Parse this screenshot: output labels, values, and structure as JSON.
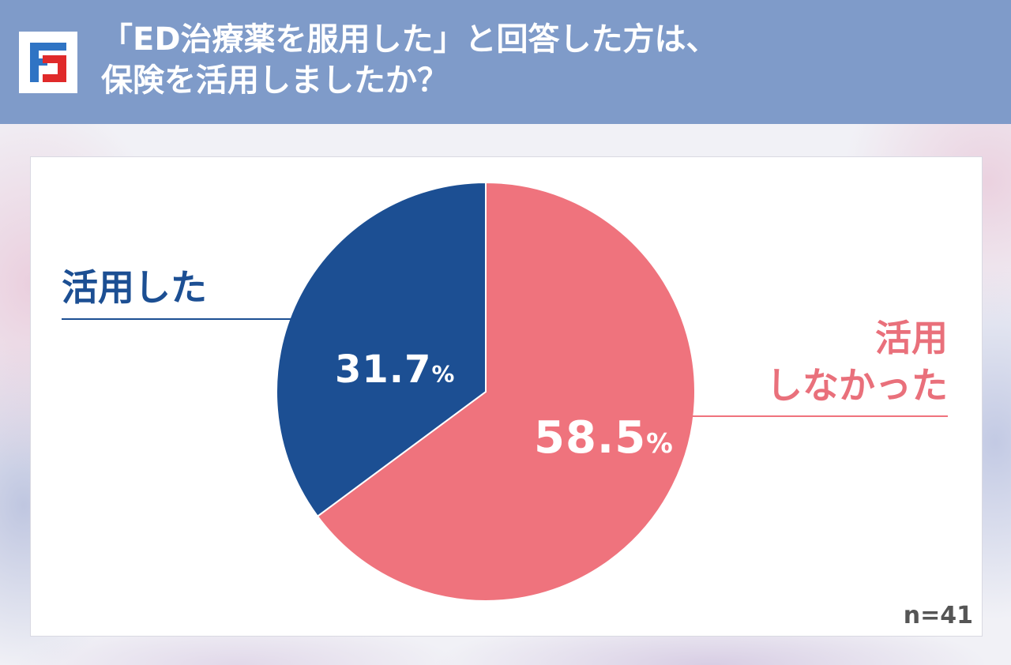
{
  "title_lines": [
    "「ED治療薬を服用した」と回答した方は、",
    "保険を活用しましたか？"
  ],
  "chart_data": {
    "type": "pie",
    "slices": [
      {
        "label": "活用しなかった",
        "label_lines": [
          "活用",
          "しなかった"
        ],
        "value": 58.5,
        "display": "58.5",
        "unit": "%",
        "color": "#ef737d"
      },
      {
        "label": "活用した",
        "label_lines": [
          "活用した"
        ],
        "value": 31.7,
        "display": "31.7",
        "unit": "%",
        "color": "#1c4f93"
      }
    ],
    "start_angle_deg": 0,
    "direction": "clockwise",
    "note": "n=41"
  },
  "colors": {
    "header_bg": "#7f9bc9",
    "logo_blue": "#2f74c4",
    "logo_red": "#e02a2a",
    "label_line": "#1c4f93"
  }
}
